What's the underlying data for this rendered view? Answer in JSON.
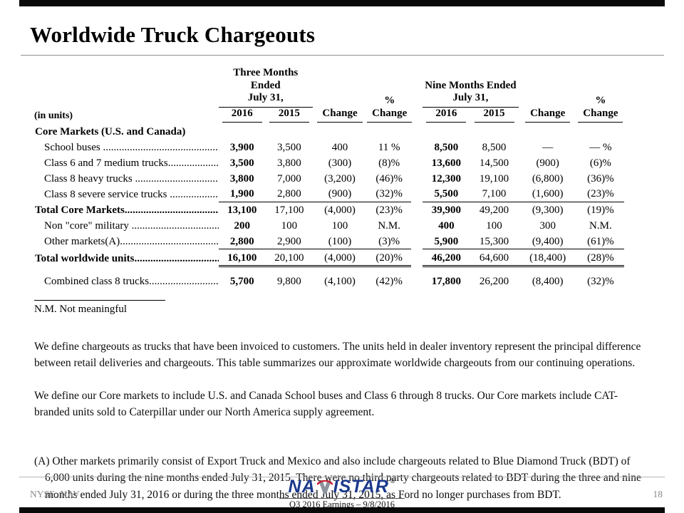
{
  "slide": {
    "title": "Worldwide Truck Chargeouts",
    "ticker": "NYSE: NAV",
    "page_number": "18",
    "logo_text_left": "NA",
    "logo_text_right": "ISTAR",
    "logo_reg": "®",
    "footer_caption": "Q3 2016 Earnings – 9/8/2016",
    "logo_color": "#1b3a8c",
    "logo_road_gray": "#8d939d",
    "logo_road_red": "#c42033"
  },
  "table": {
    "in_units": "(in units)",
    "groups": {
      "three_months": "Three Months Ended\nJuly 31,",
      "nine_months": "Nine Months Ended\nJuly 31,"
    },
    "year_headers": [
      "2016",
      "2015"
    ],
    "change_header": "Change",
    "pct_change_header": "%\nChange",
    "rows": [
      {
        "label": "Core Markets (U.S. and Canada)",
        "values": null,
        "section": true,
        "bold": true,
        "indent": false,
        "rule": "none",
        "gap": false
      },
      {
        "label": "School buses ....................................................",
        "values": [
          "3,900",
          "3,500",
          "400",
          "11 %",
          "8,500",
          "8,500",
          "—",
          "— %"
        ],
        "section": false,
        "bold": false,
        "indent": true,
        "rule": "none",
        "gap": false
      },
      {
        "label": "Class 6 and 7 medium trucks..........................",
        "values": [
          "3,500",
          "3,800",
          "(300)",
          "(8)%",
          "13,600",
          "14,500",
          "(900)",
          "(6)%"
        ],
        "section": false,
        "bold": false,
        "indent": true,
        "rule": "none",
        "gap": false
      },
      {
        "label": "Class 8 heavy trucks .......................................",
        "values": [
          "3,800",
          "7,000",
          "(3,200)",
          "(46)%",
          "12,300",
          "19,100",
          "(6,800)",
          "(36)%"
        ],
        "section": false,
        "bold": false,
        "indent": true,
        "rule": "none",
        "gap": false
      },
      {
        "label": "Class 8 severe service trucks ..........................",
        "values": [
          "1,900",
          "2,800",
          "(900)",
          "(32)%",
          "5,500",
          "7,100",
          "(1,600)",
          "(23)%"
        ],
        "section": false,
        "bold": false,
        "indent": true,
        "rule": "single",
        "gap": false
      },
      {
        "label": "Total Core Markets...........................................",
        "values": [
          "13,100",
          "17,100",
          "(4,000)",
          "(23)%",
          "39,900",
          "49,200",
          "(9,300)",
          "(19)%"
        ],
        "section": false,
        "bold": true,
        "indent": false,
        "rule": "none",
        "gap": false
      },
      {
        "label": "Non \"core\" military ..........................................",
        "values": [
          "200",
          "100",
          "100",
          "N.M.",
          "400",
          "100",
          "300",
          "N.M."
        ],
        "section": false,
        "bold": false,
        "indent": true,
        "rule": "none",
        "gap": false
      },
      {
        "label": "Other markets(A)..............................................",
        "values": [
          "2,800",
          "2,900",
          "(100)",
          "(3)%",
          "5,900",
          "15,300",
          "(9,400)",
          "(61)%"
        ],
        "section": false,
        "bold": false,
        "indent": true,
        "rule": "single",
        "gap": false
      },
      {
        "label": "Total worldwide units........................................",
        "values": [
          "16,100",
          "20,100",
          "(4,000)",
          "(20)%",
          "46,200",
          "64,600",
          "(18,400)",
          "(28)%"
        ],
        "section": false,
        "bold": true,
        "indent": false,
        "rule": "double",
        "gap": false
      },
      {
        "label": "Combined class 8 trucks..................................",
        "values": [
          "5,700",
          "9,800",
          "(4,100)",
          "(42)%",
          "17,800",
          "26,200",
          "(8,400)",
          "(32)%"
        ],
        "section": false,
        "bold": false,
        "indent": true,
        "rule": "none",
        "gap": true
      }
    ]
  },
  "notes": {
    "nm": "N.M. Not meaningful",
    "p1": "We define chargeouts as trucks that have been invoiced to customers. The units held in dealer inventory represent the principal difference between retail deliveries and chargeouts. This table summarizes our approximate worldwide chargeouts from our continuing operations.",
    "p2": "We define our Core markets to include U.S. and Canada School buses and Class 6 through 8 trucks.  Our Core markets include CAT-branded units sold to Caterpillar under our North America supply agreement.",
    "p3": "(A) Other markets primarily consist of Export Truck and Mexico and also include chargeouts related to Blue Diamond Truck (BDT) of 6,000 units during the nine months ended July 31, 2015. There were no third party chargeouts related to BDT during the three and nine months ended July 31, 2016 or during the three months ended July 31, 2015, as Ford no longer purchases from BDT."
  }
}
